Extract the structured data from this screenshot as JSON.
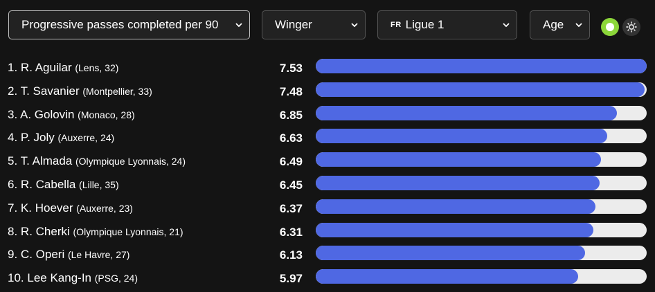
{
  "filters": {
    "metric": "Progressive passes completed per 90",
    "position": "Winger",
    "league_flag": "FR",
    "league": "Ligue 1",
    "sort": "Age"
  },
  "theme": {
    "active": "dark",
    "accent": "#8cd63a",
    "bar_color": "#4f68e3",
    "track_color": "#ececec"
  },
  "ranking": {
    "max_value": 7.53,
    "rows": [
      {
        "rank": "1.",
        "name": "R. Aguilar",
        "meta": "(Lens, 32)",
        "value": "7.53",
        "fraction": 1.0
      },
      {
        "rank": "2.",
        "name": "T. Savanier",
        "meta": "(Montpellier, 33)",
        "value": "7.48",
        "fraction": 0.993
      },
      {
        "rank": "3.",
        "name": "A. Golovin",
        "meta": "(Monaco, 28)",
        "value": "6.85",
        "fraction": 0.91
      },
      {
        "rank": "4.",
        "name": "P. Joly",
        "meta": "(Auxerre, 24)",
        "value": "6.63",
        "fraction": 0.88
      },
      {
        "rank": "5.",
        "name": "T. Almada",
        "meta": "(Olympique Lyonnais, 24)",
        "value": "6.49",
        "fraction": 0.862
      },
      {
        "rank": "6.",
        "name": "R. Cabella",
        "meta": "(Lille, 35)",
        "value": "6.45",
        "fraction": 0.857
      },
      {
        "rank": "7.",
        "name": "K. Hoever",
        "meta": "(Auxerre, 23)",
        "value": "6.37",
        "fraction": 0.846
      },
      {
        "rank": "8.",
        "name": "R. Cherki",
        "meta": "(Olympique Lyonnais, 21)",
        "value": "6.31",
        "fraction": 0.838
      },
      {
        "rank": "9.",
        "name": "C. Operi",
        "meta": "(Le Havre, 27)",
        "value": "6.13",
        "fraction": 0.814
      },
      {
        "rank": "10.",
        "name": "Lee Kang-In",
        "meta": "(PSG, 24)",
        "value": "5.97",
        "fraction": 0.793
      }
    ]
  }
}
